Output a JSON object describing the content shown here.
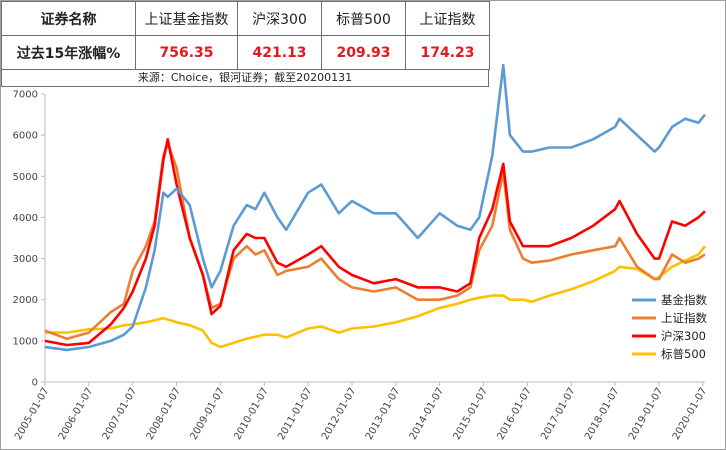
{
  "summary_table": {
    "headers": [
      "证券名称",
      "上证基金指数",
      "沪深300",
      "标普500",
      "上证指数"
    ],
    "row_label": "过去15年涨幅%",
    "values": [
      "756.35",
      "421.13",
      "209.93",
      "174.23"
    ],
    "source": "来源：Choice，银河证券；截至20200131"
  },
  "colors": {
    "fund_index": "#5b9bd5",
    "sse_composite": "#ed7d31",
    "csi300": "#ff0000",
    "sp500": "#ffc000"
  },
  "chart_data": {
    "type": "line",
    "ylim": [
      0,
      7000
    ],
    "yticks": [
      "0",
      "1000",
      "2000",
      "3000",
      "4000",
      "5000",
      "6000",
      "7000"
    ],
    "xticks": [
      "2005-01-07",
      "2006-01-07",
      "2007-01-07",
      "2008-01-07",
      "2009-01-07",
      "2010-01-07",
      "2011-01-07",
      "2012-01-07",
      "2013-01-07",
      "2014-01-07",
      "2015-01-07",
      "2016-01-07",
      "2017-01-07",
      "2018-01-07",
      "2019-01-07",
      "2020-01-07"
    ],
    "x": [
      2005.0,
      2005.5,
      2006.0,
      2006.5,
      2006.8,
      2007.0,
      2007.3,
      2007.5,
      2007.7,
      2007.8,
      2008.0,
      2008.3,
      2008.6,
      2008.8,
      2009.0,
      2009.3,
      2009.6,
      2009.8,
      2010.0,
      2010.3,
      2010.5,
      2011.0,
      2011.3,
      2011.7,
      2012.0,
      2012.5,
      2013.0,
      2013.5,
      2014.0,
      2014.4,
      2014.7,
      2014.9,
      2015.2,
      2015.45,
      2015.6,
      2015.9,
      2016.1,
      2016.5,
      2017.0,
      2017.5,
      2018.0,
      2018.1,
      2018.5,
      2018.9,
      2019.0,
      2019.3,
      2019.6,
      2019.9,
      2020.05
    ],
    "series": [
      {
        "name": "基金指数",
        "color_key": "fund_index",
        "values": [
          850,
          780,
          850,
          1000,
          1150,
          1350,
          2300,
          3200,
          4600,
          4500,
          4700,
          4300,
          3000,
          2300,
          2700,
          3800,
          4300,
          4200,
          4600,
          4000,
          3700,
          4600,
          4800,
          4100,
          4400,
          4100,
          4100,
          3500,
          4100,
          3800,
          3700,
          4000,
          5500,
          7700,
          6000,
          5600,
          5600,
          5700,
          5700,
          5900,
          6200,
          6400,
          6000,
          5600,
          5700,
          6200,
          6400,
          6300,
          6500
        ]
      },
      {
        "name": "上证指数",
        "color_key": "sse_composite",
        "values": [
          1250,
          1050,
          1200,
          1700,
          1900,
          2700,
          3300,
          3900,
          5500,
          5800,
          5200,
          3500,
          2600,
          1800,
          1900,
          3000,
          3300,
          3100,
          3200,
          2600,
          2700,
          2800,
          3000,
          2500,
          2300,
          2200,
          2300,
          2000,
          2000,
          2100,
          2300,
          3200,
          3800,
          5100,
          3700,
          3000,
          2900,
          2950,
          3100,
          3200,
          3300,
          3500,
          2800,
          2500,
          2500,
          3100,
          2900,
          3000,
          3100
        ]
      },
      {
        "name": "沪深300",
        "color_key": "csi300",
        "values": [
          1000,
          900,
          950,
          1400,
          1800,
          2200,
          3000,
          3800,
          5400,
          5900,
          4800,
          3500,
          2600,
          1650,
          1850,
          3200,
          3600,
          3500,
          3500,
          2900,
          2800,
          3100,
          3300,
          2800,
          2600,
          2400,
          2500,
          2300,
          2300,
          2200,
          2400,
          3500,
          4200,
          5300,
          3900,
          3300,
          3300,
          3300,
          3500,
          3800,
          4200,
          4400,
          3600,
          3000,
          3000,
          3900,
          3800,
          4000,
          4150
        ]
      },
      {
        "name": "标普500",
        "color_key": "sp500",
        "values": [
          1200,
          1200,
          1280,
          1300,
          1380,
          1400,
          1450,
          1500,
          1550,
          1520,
          1450,
          1380,
          1250,
          950,
          850,
          950,
          1050,
          1100,
          1150,
          1150,
          1080,
          1300,
          1350,
          1200,
          1300,
          1350,
          1450,
          1600,
          1800,
          1900,
          2000,
          2050,
          2100,
          2100,
          2000,
          2000,
          1950,
          2100,
          2250,
          2450,
          2700,
          2800,
          2750,
          2500,
          2550,
          2800,
          2950,
          3100,
          3300
        ]
      }
    ]
  }
}
